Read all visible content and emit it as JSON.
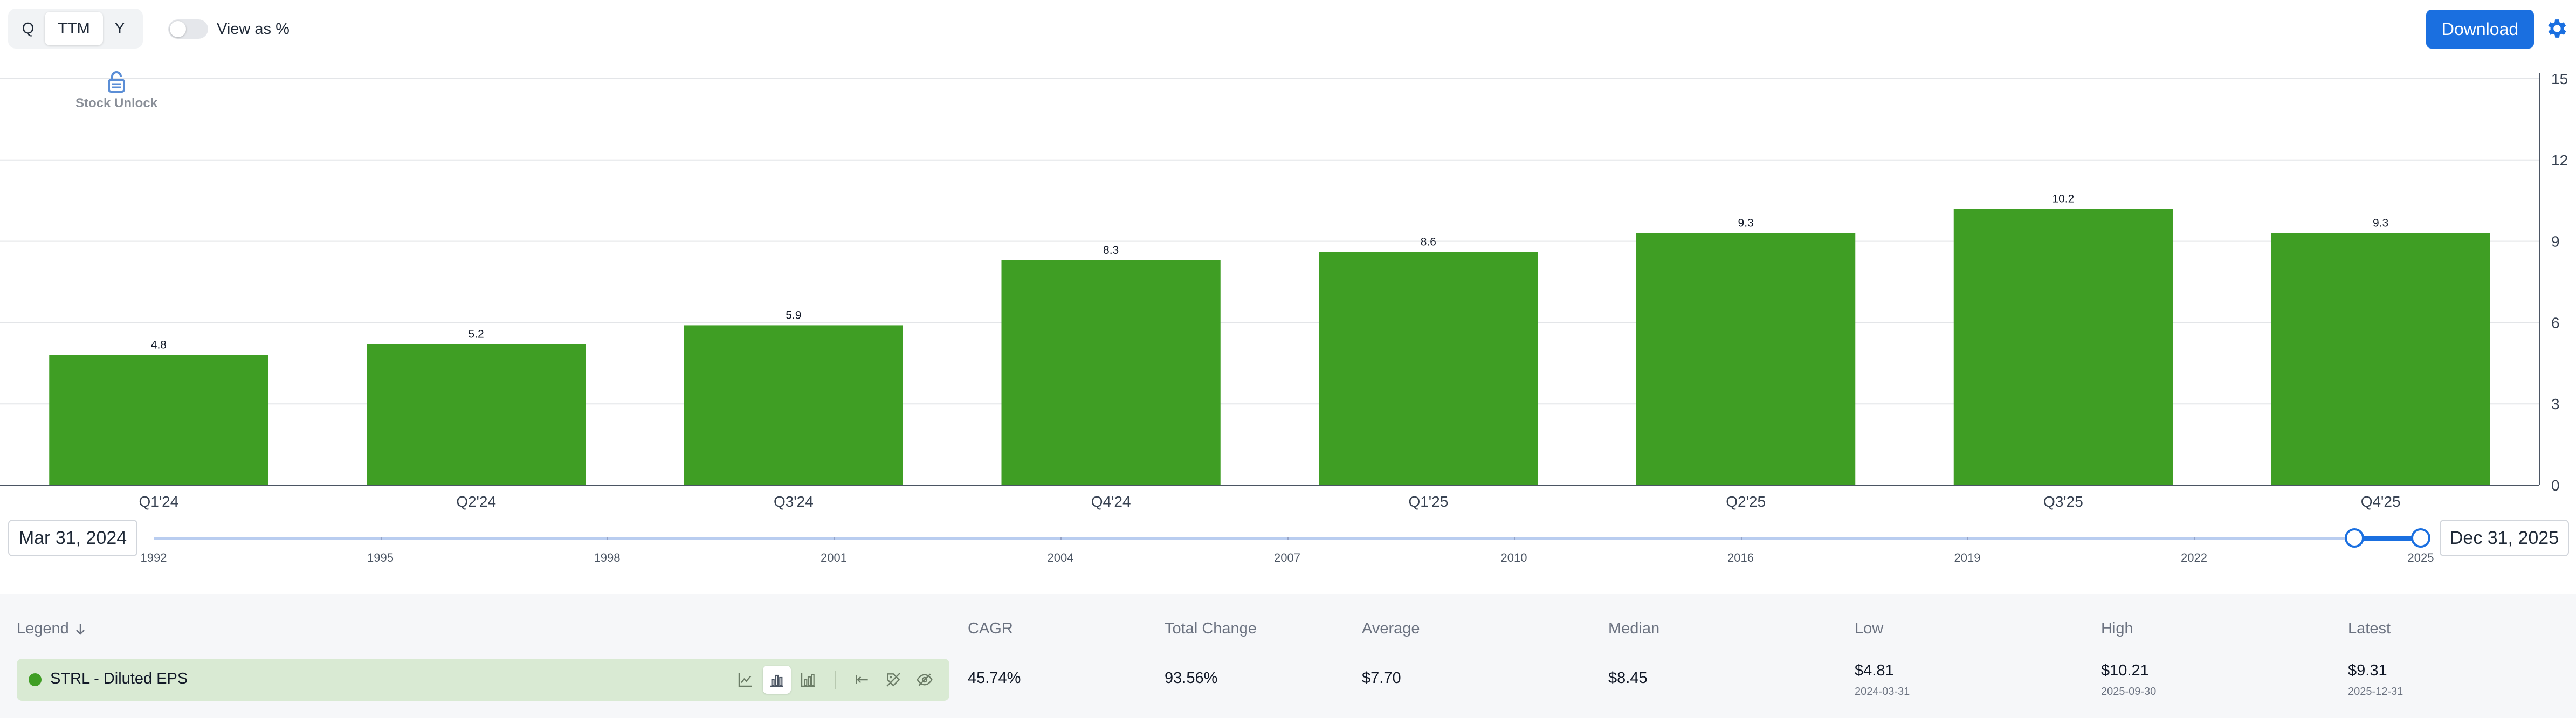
{
  "toolbar": {
    "period_q": "Q",
    "period_ttm": "TTM",
    "period_y": "Y",
    "view_as_percent": "View as %",
    "download": "Download"
  },
  "annotation": {
    "label": "Stock Unlock"
  },
  "chart_data": {
    "type": "bar",
    "categories": [
      "Q1'24",
      "Q2'24",
      "Q3'24",
      "Q4'24",
      "Q1'25",
      "Q2'25",
      "Q3'25",
      "Q4'25"
    ],
    "series": [
      {
        "name": "STRL - Diluted EPS",
        "values": [
          4.8,
          5.2,
          5.9,
          8.3,
          8.6,
          9.3,
          10.2,
          9.3
        ]
      }
    ],
    "data_labels": [
      "4.8",
      "5.2",
      "5.9",
      "8.3",
      "8.6",
      "9.3",
      "10.2",
      "9.3"
    ],
    "ylim": [
      0,
      15
    ],
    "yticks": [
      0,
      3,
      6,
      9,
      12,
      15
    ],
    "y_axis_position": "right",
    "grid": true,
    "bar_color": "#3f9e24"
  },
  "range": {
    "start_label": "Mar 31, 2024",
    "end_label": "Dec 31, 2025",
    "years": [
      "1992",
      "1995",
      "1998",
      "2001",
      "2004",
      "2007",
      "2010",
      "2016",
      "2019",
      "2022",
      "2025"
    ],
    "selected_start_fraction": 0.9707,
    "selected_end_fraction": 1.0
  },
  "stats": {
    "headers": {
      "legend": "Legend",
      "cagr": "CAGR",
      "total_change": "Total Change",
      "average": "Average",
      "median": "Median",
      "low": "Low",
      "high": "High",
      "latest": "Latest"
    },
    "row": {
      "name": "STRL - Diluted EPS",
      "color": "#3f9e24",
      "cagr": "45.74%",
      "total_change": "93.56%",
      "average": "$7.70",
      "median": "$8.45",
      "low": "$4.81",
      "low_date": "2024-03-31",
      "high": "$10.21",
      "high_date": "2025-09-30",
      "latest": "$9.31",
      "latest_date": "2025-12-31"
    }
  }
}
